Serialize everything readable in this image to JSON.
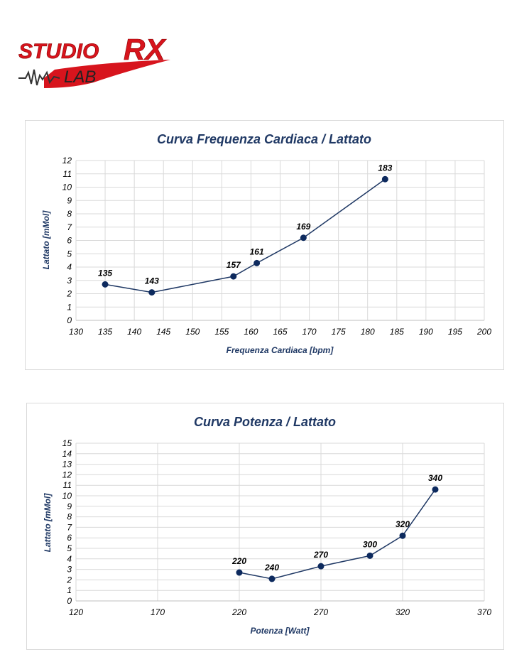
{
  "logo": {
    "brand_main": "STUDIO",
    "brand_accent": "RX",
    "brand_sub": "LAB",
    "colors": {
      "red": "#d7141d",
      "dark": "#333333"
    }
  },
  "colors": {
    "title": "#1f3864",
    "series": "#1f3864",
    "marker": "#0d2a5e",
    "grid": "#d9d9d9"
  },
  "chart_data": [
    {
      "type": "line",
      "title": "Curva Frequenza Cardiaca / Lattato",
      "xlabel": "Frequenza Cardiaca [bpm]",
      "ylabel": "Lattato [mMol]",
      "xlim": [
        130,
        200
      ],
      "ylim": [
        0,
        12
      ],
      "xticks": [
        130,
        135,
        140,
        145,
        150,
        155,
        160,
        165,
        170,
        175,
        180,
        185,
        190,
        195,
        200
      ],
      "yticks": [
        0,
        1,
        2,
        3,
        4,
        5,
        6,
        7,
        8,
        9,
        10,
        11,
        12
      ],
      "grid": true,
      "legend": "none",
      "points": [
        {
          "x": 135,
          "y": 2.7,
          "label": "135"
        },
        {
          "x": 143,
          "y": 2.1,
          "label": "143"
        },
        {
          "x": 157,
          "y": 3.3,
          "label": "157"
        },
        {
          "x": 161,
          "y": 4.3,
          "label": "161"
        },
        {
          "x": 169,
          "y": 6.2,
          "label": "169"
        },
        {
          "x": 183,
          "y": 10.6,
          "label": "183"
        }
      ]
    },
    {
      "type": "line",
      "title": "Curva Potenza / Lattato",
      "xlabel": "Potenza [Watt]",
      "ylabel": "Lattato [mMol]",
      "xlim": [
        120,
        370
      ],
      "ylim": [
        0,
        15
      ],
      "xticks": [
        120,
        170,
        220,
        270,
        320,
        370
      ],
      "yticks": [
        0,
        1,
        2,
        3,
        4,
        5,
        6,
        7,
        8,
        9,
        10,
        11,
        12,
        13,
        14,
        15
      ],
      "grid": true,
      "legend": "none",
      "points": [
        {
          "x": 220,
          "y": 2.7,
          "label": "220"
        },
        {
          "x": 240,
          "y": 2.1,
          "label": "240"
        },
        {
          "x": 270,
          "y": 3.3,
          "label": "270"
        },
        {
          "x": 300,
          "y": 4.3,
          "label": "300"
        },
        {
          "x": 320,
          "y": 6.2,
          "label": "320"
        },
        {
          "x": 340,
          "y": 10.6,
          "label": "340"
        }
      ]
    }
  ]
}
